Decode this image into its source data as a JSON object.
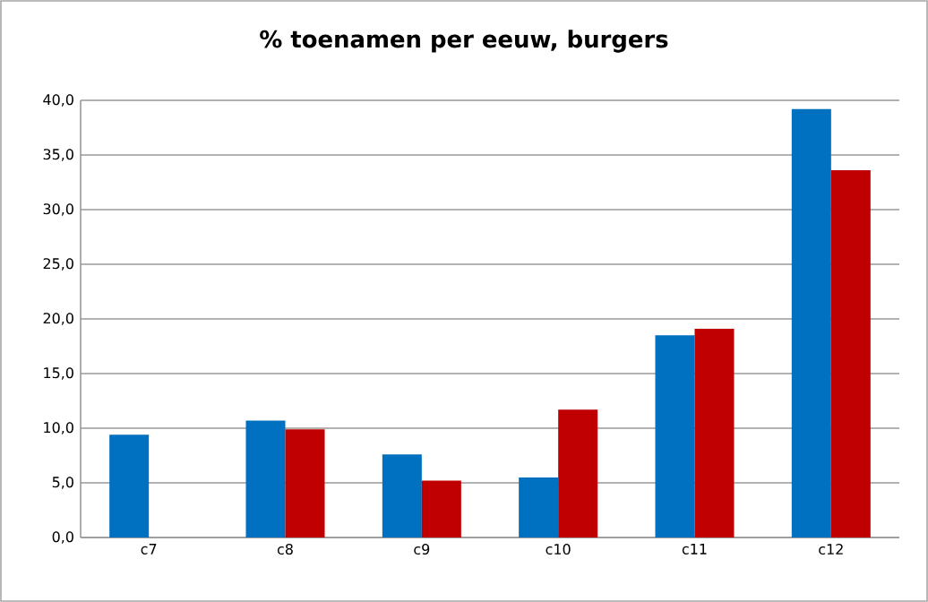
{
  "chart_data": {
    "type": "bar",
    "title": "% toenamen per eeuw, burgers",
    "categories": [
      "c7",
      "c8",
      "c9",
      "c10",
      "c11",
      "c12"
    ],
    "series": [
      {
        "color": "#0070c0",
        "values": [
          9.4,
          10.7,
          7.6,
          5.5,
          18.5,
          39.2
        ]
      },
      {
        "color": "#c00000",
        "values": [
          0,
          9.9,
          5.2,
          11.7,
          19.1,
          33.6
        ]
      }
    ],
    "ylim": [
      0,
      40
    ],
    "yticks": [
      {
        "value": 0,
        "label": "0,0"
      },
      {
        "value": 5,
        "label": "5,0"
      },
      {
        "value": 10,
        "label": "10,0"
      },
      {
        "value": 15,
        "label": "15,0"
      },
      {
        "value": 20,
        "label": "20,0"
      },
      {
        "value": 25,
        "label": "25,0"
      },
      {
        "value": 30,
        "label": "30,0"
      },
      {
        "value": 35,
        "label": "35,0"
      },
      {
        "value": 40,
        "label": "40,0"
      }
    ],
    "grid": "y"
  }
}
